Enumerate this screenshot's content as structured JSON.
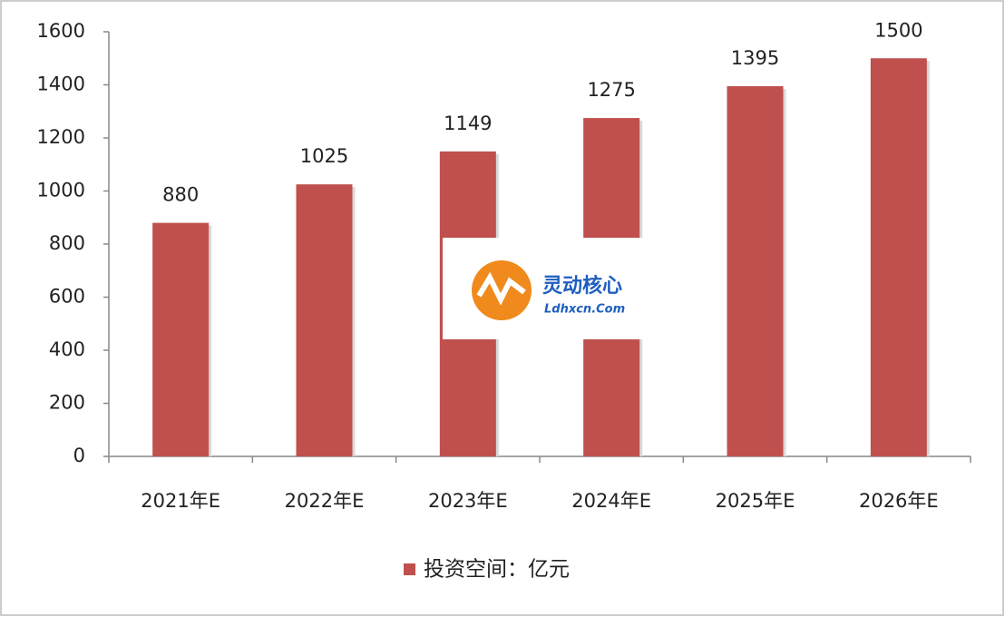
{
  "chart_data": {
    "type": "bar",
    "categories": [
      "2021年E",
      "2022年E",
      "2023年E",
      "2024年E",
      "2025年E",
      "2026年E"
    ],
    "series": [
      {
        "name": "投资空间：亿元",
        "color": "#c0504d",
        "values": [
          880,
          1025,
          1149,
          1275,
          1395,
          1500
        ]
      }
    ],
    "ylim": [
      0,
      1600
    ],
    "yticks": [
      0,
      200,
      400,
      600,
      800,
      1000,
      1200,
      1400,
      1600
    ],
    "legend": "bottom",
    "annotations": [
      "灵动核心",
      "Ldhxcn.Com"
    ]
  }
}
